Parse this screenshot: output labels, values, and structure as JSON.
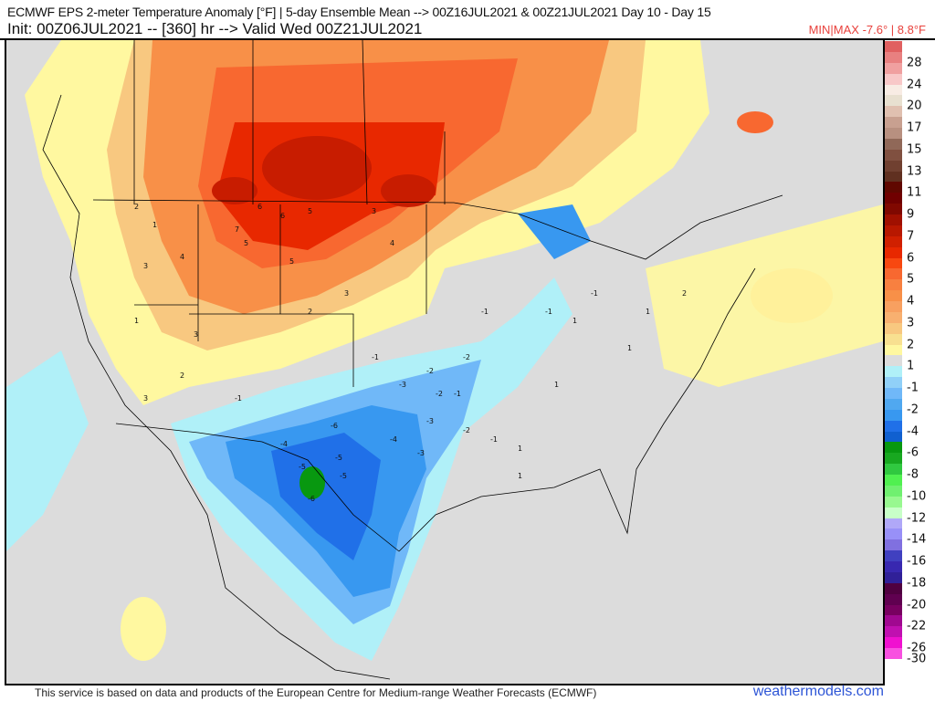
{
  "header": {
    "title": "ECMWF EPS 2-meter Temperature Anomaly [°F] | 5-day Ensemble Mean --> 00Z16JUL2021 & 00Z21JUL2021   Day 10 - Day 15",
    "subtitle": "Init: 00Z06JUL2021 -- [360] hr --> Valid Wed 00Z21JUL2021",
    "minmax": "MIN|MAX -7.6° | 8.8°F"
  },
  "colorbar": {
    "labels": [
      "28",
      "24",
      "20",
      "17",
      "15",
      "13",
      "11",
      "9",
      "7",
      "6",
      "5",
      "4",
      "3",
      "2",
      "1",
      "-1",
      "-2",
      "-4",
      "-6",
      "-8",
      "-10",
      "-12",
      "-14",
      "-16",
      "-18",
      "-20",
      "-22",
      "-26",
      "-30"
    ],
    "colors": [
      "#e06060",
      "#e88080",
      "#f0a0a0",
      "#f8c8c8",
      "#f8ece4",
      "#e8e0d0",
      "#e0c0b0",
      "#c8a090",
      "#b89080",
      "#906858",
      "#805040",
      "#704030",
      "#603020",
      "#600800",
      "#700000",
      "#800800",
      "#a01000",
      "#b81800",
      "#d02000",
      "#e82800",
      "#f84810",
      "#f86830",
      "#f88040",
      "#f89048",
      "#f8a060",
      "#f8b070",
      "#f8c880",
      "#f8e090",
      "#fff8a0",
      "#dcdcdc",
      "#b0f0f8",
      "#90d0f8",
      "#70b8f8",
      "#50a8f0",
      "#3898f0",
      "#2070e8",
      "#1060d0",
      "#089810",
      "#18a820",
      "#30c840",
      "#50f050",
      "#70f070",
      "#98f890",
      "#c8ffc8",
      "#b0a8f8",
      "#9890f8",
      "#8070e0",
      "#4040c0",
      "#3828b0",
      "#302098",
      "#500040",
      "#600050",
      "#780060",
      "#a00890",
      "#c010b0",
      "#f010d0",
      "#f850e0"
    ]
  },
  "map": {
    "station_values": [
      "2",
      "1",
      "3",
      "4",
      "6",
      "5",
      "7",
      "6",
      "5",
      "5",
      "3",
      "4",
      "3",
      "2",
      "1",
      "3",
      "2",
      "3",
      "-1",
      "-1",
      "-2",
      "-2",
      "-3",
      "-1",
      "-4",
      "-5",
      "-6",
      "-5",
      "-6",
      "-5",
      "-4",
      "-3",
      "-2",
      "-1",
      "1",
      "1",
      "-1",
      "1",
      "-1",
      "1",
      "1",
      "2",
      "-3",
      "-2",
      "-1",
      "1"
    ]
  },
  "footer": {
    "disclaimer": "This service is based on data and products of the European Centre for Medium-range Weather Forecasts (ECMWF)",
    "brand": "weathermodels.com"
  }
}
